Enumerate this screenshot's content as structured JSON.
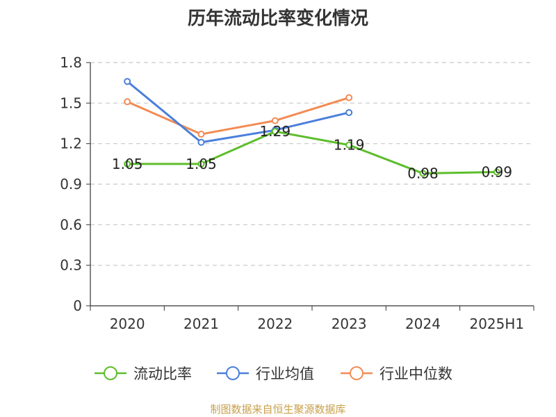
{
  "chart_data": {
    "type": "line",
    "title": "历年流动比率变化情况",
    "categories": [
      "2020",
      "2021",
      "2022",
      "2023",
      "2024",
      "2025H1"
    ],
    "series": [
      {
        "name": "流动比率",
        "color": "#5dbd2c",
        "values": [
          1.05,
          1.05,
          1.29,
          1.19,
          0.98,
          0.99
        ],
        "data_labels": [
          "1.05",
          "1.05",
          "1.29",
          "1.19",
          "0.98",
          "0.99"
        ]
      },
      {
        "name": "行业均值",
        "color": "#4a7fdb",
        "values": [
          1.66,
          1.21,
          1.3,
          1.43,
          null,
          null
        ]
      },
      {
        "name": "行业中位数",
        "color": "#f28b54",
        "values": [
          1.51,
          1.27,
          1.37,
          1.54,
          null,
          null
        ]
      }
    ],
    "yticks": [
      "0",
      "0.3",
      "0.6",
      "0.9",
      "1.2",
      "1.5",
      "1.8"
    ],
    "ylim": [
      0,
      1.8
    ],
    "grid": true,
    "legend_position": "bottom"
  },
  "source": "制图数据来自恒生聚源数据库"
}
